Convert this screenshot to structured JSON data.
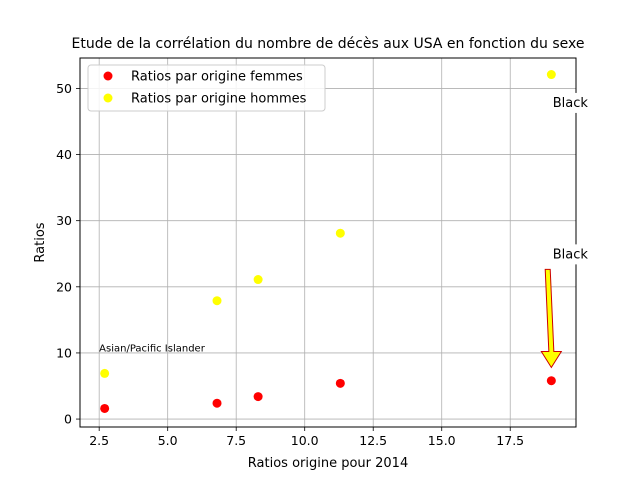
{
  "chart_data": {
    "type": "scatter",
    "title": "Etude de la corrélation du nombre de décès aux USA en fonction du sexe",
    "xlabel": "Ratios origine pour 2014",
    "ylabel": "Ratios",
    "xlim": [
      1.8,
      19.9
    ],
    "ylim": [
      -1.2,
      54.6
    ],
    "xticks": [
      "2.5",
      "5.0",
      "7.5",
      "10.0",
      "12.5",
      "15.0",
      "17.5"
    ],
    "xtick_values": [
      2.5,
      5.0,
      7.5,
      10.0,
      12.5,
      15.0,
      17.5
    ],
    "yticks": [
      "0",
      "10",
      "20",
      "30",
      "40",
      "50"
    ],
    "ytick_values": [
      0,
      10,
      20,
      30,
      40,
      50
    ],
    "grid": true,
    "legend_position": "top-left",
    "series": [
      {
        "name": "Ratios par origine femmes",
        "color": "#ff0000",
        "x": [
          2.7,
          6.8,
          8.3,
          11.3,
          19.0
        ],
        "y": [
          1.6,
          2.4,
          3.4,
          5.4,
          5.8
        ]
      },
      {
        "name": "Ratios par origine hommes",
        "color": "#ffff00",
        "x": [
          2.7,
          6.8,
          8.3,
          11.3,
          19.0
        ],
        "y": [
          6.9,
          17.9,
          21.1,
          28.1,
          52.1
        ]
      }
    ],
    "annotations": [
      {
        "text": "Black",
        "x": 19.05,
        "y": 47.2,
        "style": "boxed"
      },
      {
        "text": "Black",
        "x": 19.05,
        "y": 24.3,
        "style": "boxed",
        "arrow_to": [
          19.0,
          7.8
        ],
        "arrow_color": "#ffff00",
        "arrow_edge": "#cc0000"
      },
      {
        "text": "Asian/Pacific Islander",
        "x": 2.5,
        "y": 10.2,
        "style": "small"
      }
    ]
  }
}
